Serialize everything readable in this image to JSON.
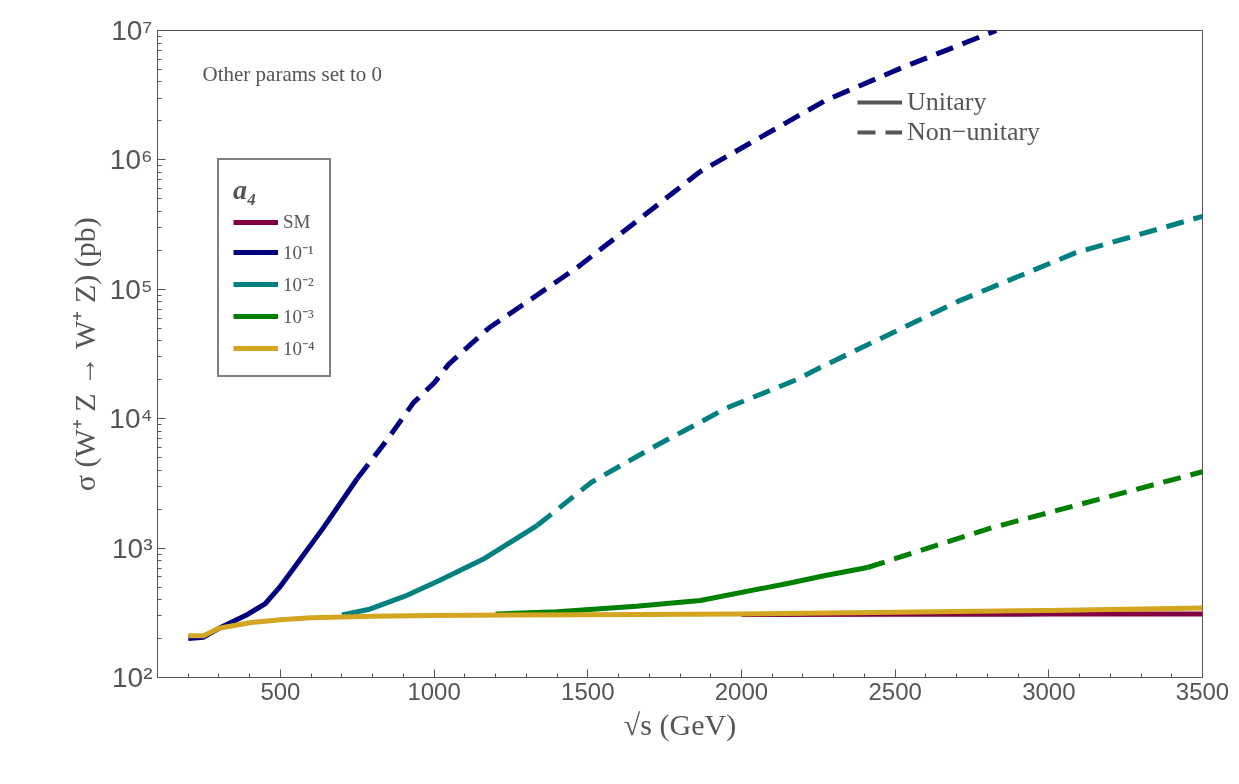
{
  "chart_data": {
    "type": "line",
    "xlabel": "√s (GeV)",
    "ylabel": "σ (W⁺ Z → W⁺ Z) (pb)",
    "legend_title": "a₄",
    "log": "y",
    "grid": false,
    "legend": "top left",
    "xlim": [
      100,
      3500
    ],
    "xticks": [
      500,
      1000,
      1500,
      2000,
      2500,
      3000,
      3500
    ],
    "ylim": [
      100,
      10000000
    ],
    "yticks": [
      {
        "value": 100,
        "label": "10²"
      },
      {
        "value": 1000,
        "label": "10³"
      },
      {
        "value": 10000,
        "label": "10⁴"
      },
      {
        "value": 100000,
        "label": "10⁵"
      },
      {
        "value": 1000000,
        "label": "10⁶"
      },
      {
        "value": 10000000,
        "label": "10⁷"
      }
    ],
    "annotations": [
      "Other params set to 0",
      "Unitary",
      "Non−unitary"
    ],
    "series": [
      {
        "name": "SM",
        "color": "#800040",
        "line_style": "solid",
        "x": [
          2000,
          2500,
          3000,
          3500
        ],
        "values": [
          307,
          308,
          309,
          310
        ]
      },
      {
        "name": "10⁻¹",
        "color": "#000080",
        "line_style": "solid",
        "x": [
          200,
          250,
          300,
          393,
          451,
          497,
          545,
          640,
          750
        ],
        "values": [
          200,
          205,
          240,
          307,
          373,
          497,
          708,
          1440,
          3450
        ]
      },
      {
        "color": "#000080",
        "line_style": "dashed",
        "x": [
          750,
          845,
          933,
          1001,
          1047,
          1177,
          1365,
          1470,
          1866,
          2029,
          2273,
          2517,
          2829
        ],
        "values": [
          3450,
          6760,
          13300,
          19000,
          26300,
          50000,
          101000,
          150000,
          813000,
          1350000,
          2880000,
          5100000,
          10000000
        ]
      },
      {
        "name": "10⁻²",
        "color": "#008080",
        "line_style": "solid",
        "x": [
          700,
          786,
          903,
          1017,
          1164,
          1336
        ],
        "values": [
          305,
          335,
          423,
          562,
          832,
          1500
        ]
      },
      {
        "color": "#008080",
        "line_style": "dashed",
        "x": [
          1336,
          1512,
          1717,
          1866,
          1948,
          2179,
          2273,
          2706,
          3086,
          3500
        ],
        "values": [
          1500,
          3230,
          6100,
          9400,
          12000,
          20000,
          26000,
          81000,
          191000,
          366000
        ]
      },
      {
        "name": "10⁻³",
        "color": "#008000",
        "line_style": "solid",
        "x": [
          1200,
          1400,
          1658,
          1866,
          2150,
          2273,
          2410
        ],
        "values": [
          310,
          322,
          355,
          394,
          533,
          614,
          708
        ]
      },
      {
        "color": "#008000",
        "line_style": "dashed",
        "x": [
          2410,
          2816,
          3223,
          3500
        ],
        "values": [
          708,
          1440,
          2600,
          3890
        ]
      },
      {
        "name": "10⁻⁴",
        "color": "#d4a520",
        "line_style": "solid",
        "x": [
          200,
          250,
          300,
          400,
          500,
          600,
          800,
          1000,
          1500,
          2000,
          2500,
          3000,
          3500
        ],
        "values": [
          210,
          210,
          240,
          265,
          280,
          290,
          298,
          302,
          305,
          310,
          320,
          330,
          345
        ]
      }
    ]
  }
}
